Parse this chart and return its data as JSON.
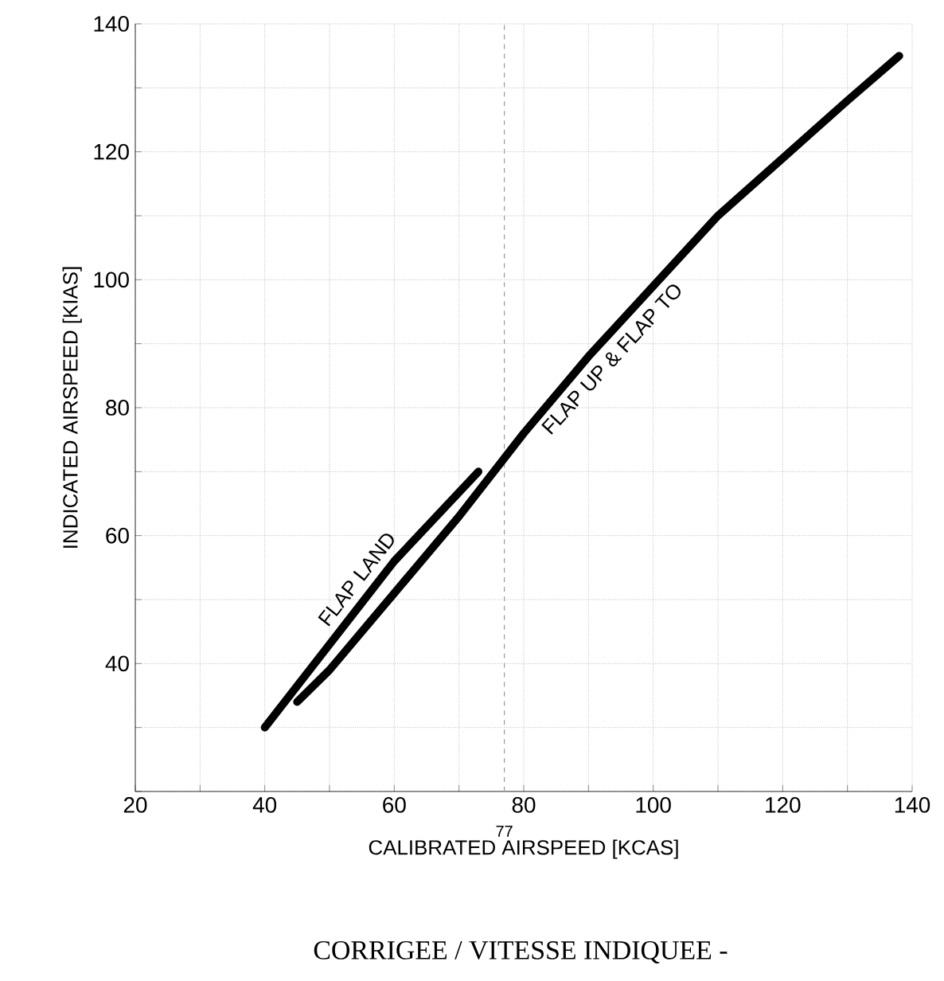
{
  "chart_data": {
    "type": "line",
    "xlabel": "CALIBRATED AIRSPEED [KCAS]",
    "ylabel": "INDICATED AIRSPEED [KIAS]",
    "annotations": [
      "CORRIGEE / VITESSE INDIQUEE -"
    ],
    "series": [
      {
        "name": "FLAP LAND",
        "color": "#000000",
        "x": [
          40,
          50,
          60,
          73
        ],
        "values": [
          30,
          43,
          56,
          70
        ]
      },
      {
        "name": "FLAP UP & FLAP TO",
        "color": "#000000",
        "x": [
          45,
          50,
          60,
          70,
          80,
          90,
          100,
          110,
          120,
          130,
          138
        ],
        "values": [
          34,
          39,
          51,
          63,
          76,
          88,
          99,
          110,
          119,
          128,
          135
        ]
      }
    ],
    "xlim": [
      20,
      140
    ],
    "ylim": [
      20,
      140
    ],
    "xticks": [
      20,
      {
        "value": 30,
        "label": null
      },
      40,
      {
        "value": 50,
        "label": null
      },
      60,
      {
        "value": 70,
        "label": null
      },
      80,
      {
        "value": 90,
        "label": null
      },
      100,
      {
        "value": 110,
        "label": null
      },
      120,
      {
        "value": 130,
        "label": null
      },
      140
    ],
    "yticks": [
      {
        "value": 20,
        "label": null
      },
      {
        "value": 30,
        "label": null
      },
      40,
      {
        "value": 50,
        "label": null
      },
      60,
      {
        "value": 70,
        "label": null
      },
      80,
      {
        "value": 90,
        "label": null
      },
      100,
      {
        "value": 110,
        "label": null
      },
      120,
      {
        "value": 130,
        "label": null
      },
      140
    ],
    "ref_lines": [
      {
        "axis": "x",
        "value": 77,
        "label": "77",
        "color": "#999999",
        "line_style": "dashed"
      }
    ],
    "grid": true,
    "legend": false,
    "marker": "none",
    "line_style": "solid"
  }
}
